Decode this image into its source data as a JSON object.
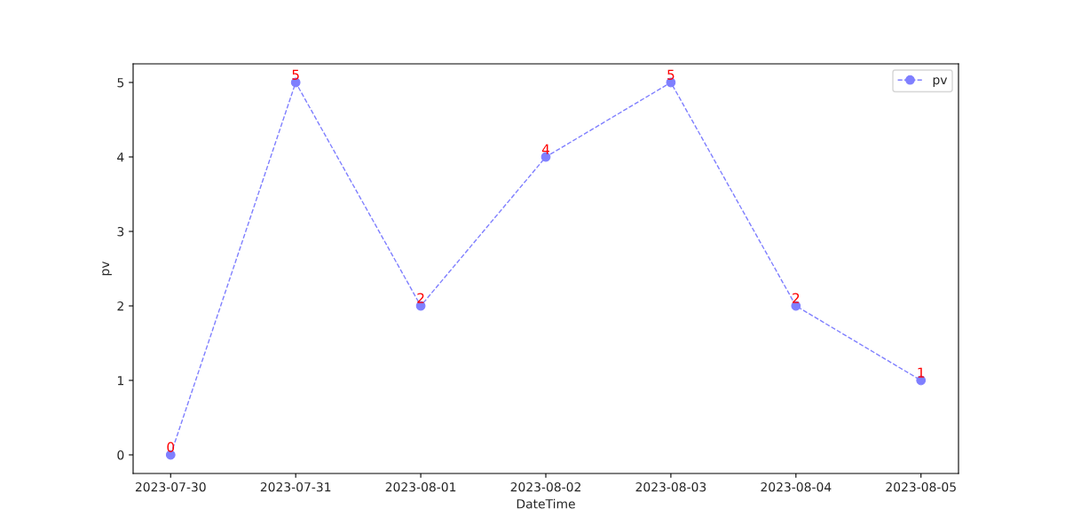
{
  "chart_data": {
    "type": "line",
    "xlabel": "DateTime",
    "ylabel": "pv",
    "categories": [
      "2023-07-30",
      "2023-07-31",
      "2023-08-01",
      "2023-08-02",
      "2023-08-03",
      "2023-08-04",
      "2023-08-05"
    ],
    "series": [
      {
        "name": "pv",
        "color": "#7f7fff",
        "values": [
          0,
          5,
          2,
          4,
          5,
          2,
          1
        ]
      }
    ],
    "ylim": [
      -0.25,
      5.25
    ],
    "yticks": [
      0,
      1,
      2,
      3,
      4,
      5
    ],
    "data_labels": true,
    "marker": "circle",
    "line_style": "dashed",
    "legend": "top right",
    "grid": false
  }
}
